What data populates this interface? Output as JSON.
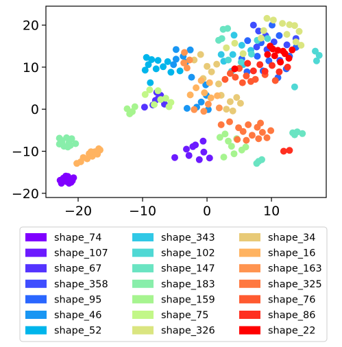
{
  "chart_data": {
    "type": "scatter",
    "xlim": [
      -25,
      18.5
    ],
    "ylim": [
      -21,
      24.5
    ],
    "xticks": [
      -20,
      -10,
      0,
      10
    ],
    "yticks": [
      -20,
      -10,
      0,
      10,
      20
    ],
    "xtick_labels": [
      "−20",
      "−10",
      "0",
      "10"
    ],
    "ytick_labels": [
      "−20",
      "−10",
      "0",
      "10",
      "20"
    ],
    "title": "",
    "xlabel": "",
    "ylabel": "",
    "grid": false,
    "legend_position": "below",
    "legend_columns": 3,
    "series": [
      {
        "name": "shape_74",
        "color": "#8000ff",
        "points": [
          [
            -22.3,
            -16.4
          ],
          [
            -21.8,
            -17.2
          ],
          [
            -21.2,
            -16.6
          ],
          [
            -22.6,
            -17.6
          ],
          [
            -21.6,
            -16.0
          ],
          [
            -20.9,
            -17.0
          ],
          [
            -22.0,
            -16.8
          ],
          [
            -21.4,
            -17.6
          ],
          [
            -22.8,
            -16.9
          ],
          [
            -20.7,
            -16.3
          ],
          [
            -21.9,
            -15.9
          ],
          [
            -21.1,
            -17.4
          ]
        ]
      },
      {
        "name": "shape_107",
        "color": "#6c1aff",
        "points": [
          [
            -5.0,
            -11.5
          ],
          [
            -3.2,
            -9.5
          ],
          [
            -2.8,
            -11.0
          ],
          [
            -1.8,
            -8.5
          ],
          [
            -1.2,
            -12.0
          ],
          [
            -0.5,
            -10.2
          ],
          [
            0.4,
            -11.6
          ],
          [
            -0.6,
            -7.6
          ],
          [
            -2.2,
            -8.9
          ]
        ]
      },
      {
        "name": "shape_67",
        "color": "#5433ff",
        "points": [
          [
            -7.6,
            2.5
          ],
          [
            -7.8,
            4.0
          ],
          [
            -8.4,
            1.0
          ],
          [
            -7.2,
            3.3
          ],
          [
            -9.7,
            0.5
          ],
          [
            -6.6,
            1.2
          ],
          [
            -8.0,
            2.1
          ]
        ]
      },
      {
        "name": "shape_358",
        "color": "#3f4dff",
        "points": [
          [
            7.2,
            20.0
          ],
          [
            8.0,
            18.6
          ],
          [
            9.1,
            17.5
          ],
          [
            10.4,
            16.0
          ],
          [
            9.3,
            14.2
          ],
          [
            11.3,
            11.6
          ],
          [
            7.7,
            14.8
          ],
          [
            12.4,
            15.3
          ],
          [
            13.8,
            16.8
          ]
        ]
      },
      {
        "name": "shape_95",
        "color": "#2a66ff",
        "points": [
          [
            10.1,
            20.0
          ],
          [
            8.4,
            15.8
          ],
          [
            11.2,
            17.5
          ],
          [
            6.3,
            16.3
          ],
          [
            7.8,
            12.6
          ],
          [
            9.6,
            11.5
          ],
          [
            12.8,
            12.6
          ],
          [
            13.8,
            14.7
          ],
          [
            12.3,
            9.6
          ],
          [
            8.7,
            9.1
          ],
          [
            11.0,
            7.5
          ],
          [
            6.2,
            8.9
          ],
          [
            5.4,
            12.0
          ]
        ]
      },
      {
        "name": "shape_46",
        "color": "#1996f3",
        "points": [
          [
            -4.8,
            14.2
          ],
          [
            -3.7,
            12.6
          ],
          [
            -5.2,
            10.6
          ],
          [
            -2.6,
            14.1
          ],
          [
            -3.3,
            11.2
          ],
          [
            -2.4,
            7.6
          ],
          [
            -0.1,
            3.3
          ],
          [
            -1.6,
            0.5
          ],
          [
            0.2,
            -0.1
          ],
          [
            -0.9,
            1.7
          ],
          [
            -3.1,
            0.2
          ],
          [
            -0.2,
            5.8
          ],
          [
            -4.8,
            11.9
          ]
        ]
      },
      {
        "name": "shape_52",
        "color": "#00b5eb",
        "points": [
          [
            -9.4,
            12.3
          ],
          [
            -8.6,
            11.8
          ],
          [
            -9.1,
            10.6
          ],
          [
            -7.6,
            11.6
          ],
          [
            -8.8,
            6.3
          ],
          [
            -6.8,
            10.1
          ],
          [
            -7.9,
            9.6
          ],
          [
            -9.6,
            9.3
          ],
          [
            -5.6,
            8.8
          ],
          [
            -4.2,
            9.1
          ],
          [
            -6.1,
            11.3
          ]
        ]
      },
      {
        "name": "shape_343",
        "color": "#31c8e6",
        "points": [
          [
            5.4,
            15.2
          ],
          [
            4.0,
            13.0
          ],
          [
            5.6,
            10.6
          ],
          [
            3.8,
            9.0
          ],
          [
            6.8,
            14.0
          ],
          [
            2.2,
            13.0
          ],
          [
            2.6,
            11.4
          ],
          [
            4.2,
            17.6
          ]
        ]
      },
      {
        "name": "shape_102",
        "color": "#4fd8d4",
        "points": [
          [
            7.8,
            16.4
          ],
          [
            9.4,
            16.8
          ],
          [
            6.9,
            13.1
          ],
          [
            5.3,
            11.2
          ],
          [
            3.3,
            11.7
          ],
          [
            16.8,
            13.8
          ],
          [
            17.0,
            11.5
          ],
          [
            17.4,
            12.8
          ],
          [
            13.6,
            5.3
          ]
        ]
      },
      {
        "name": "shape_147",
        "color": "#6ae4c2",
        "points": [
          [
            2.3,
            16.8
          ],
          [
            1.8,
            16.4
          ],
          [
            2.5,
            19.0
          ],
          [
            3.2,
            19.2
          ],
          [
            8.0,
            -12.4
          ],
          [
            8.5,
            -12.0
          ],
          [
            7.7,
            -12.9
          ],
          [
            13.3,
            -5.6
          ],
          [
            14.0,
            -5.4
          ],
          [
            14.8,
            -5.8
          ],
          [
            13.6,
            -6.1
          ]
        ]
      },
      {
        "name": "shape_183",
        "color": "#88eeaa",
        "points": [
          [
            -22.7,
            -7.3
          ],
          [
            -21.8,
            -6.8
          ],
          [
            -22.9,
            -8.3
          ],
          [
            -21.4,
            -8.0
          ],
          [
            -22.2,
            -8.8
          ],
          [
            -21.0,
            -7.0
          ],
          [
            -22.5,
            -7.8
          ],
          [
            -21.6,
            -9.0
          ],
          [
            -20.4,
            -8.2
          ],
          [
            -22.9,
            -6.9
          ],
          [
            -21.2,
            -8.6
          ]
        ]
      },
      {
        "name": "shape_159",
        "color": "#a6f48f",
        "points": [
          [
            -12.4,
            0.1
          ],
          [
            -11.6,
            -0.6
          ],
          [
            -12.0,
            -1.1
          ],
          [
            -11.2,
            0.6
          ],
          [
            2.0,
            -6.7
          ],
          [
            3.3,
            -7.6
          ],
          [
            4.6,
            -7.0
          ],
          [
            3.8,
            -8.8
          ],
          [
            5.4,
            -9.7
          ],
          [
            4.2,
            -10.6
          ],
          [
            2.6,
            -11.4
          ],
          [
            6.0,
            -9.0
          ],
          [
            2.8,
            -5.9
          ]
        ]
      },
      {
        "name": "shape_75",
        "color": "#c2f788",
        "points": [
          [
            -8.9,
            4.6
          ],
          [
            -7.6,
            4.4
          ],
          [
            -7.2,
            2.3
          ],
          [
            -5.6,
            1.6
          ],
          [
            -5.9,
            0.6
          ],
          [
            -8.2,
            1.1
          ],
          [
            -6.4,
            2.6
          ],
          [
            -9.6,
            3.5
          ]
        ]
      },
      {
        "name": "shape_326",
        "color": "#dae580",
        "points": [
          [
            9.3,
            21.6
          ],
          [
            10.3,
            21.2
          ],
          [
            11.7,
            20.4
          ],
          [
            12.8,
            20.1
          ],
          [
            13.6,
            19.9
          ],
          [
            14.3,
            18.5
          ],
          [
            12.4,
            17.8
          ],
          [
            13.8,
            16.0
          ],
          [
            8.8,
            18.7
          ],
          [
            8.4,
            16.9
          ],
          [
            4.3,
            15.7
          ],
          [
            3.0,
            14.6
          ],
          [
            5.6,
            13.2
          ],
          [
            14.6,
            15.2
          ]
        ]
      },
      {
        "name": "shape_34",
        "color": "#e8ca77",
        "points": [
          [
            -2.0,
            11.7
          ],
          [
            -1.0,
            13.0
          ],
          [
            0.0,
            10.2
          ],
          [
            1.5,
            10.7
          ],
          [
            -0.6,
            7.3
          ],
          [
            1.8,
            6.0
          ],
          [
            3.6,
            1.8
          ],
          [
            4.0,
            -0.4
          ],
          [
            5.2,
            1.4
          ],
          [
            4.6,
            2.8
          ],
          [
            3.0,
            0.0
          ],
          [
            0.7,
            8.9
          ],
          [
            2.2,
            3.3
          ]
        ]
      },
      {
        "name": "shape_16",
        "color": "#ffb360",
        "points": [
          [
            -19.2,
            -11.5
          ],
          [
            -18.3,
            -10.6
          ],
          [
            -17.4,
            -10.1
          ],
          [
            -16.6,
            -9.7
          ],
          [
            -18.6,
            -11.8
          ],
          [
            -17.8,
            -11.2
          ],
          [
            -17.0,
            -10.7
          ],
          [
            -19.6,
            -12.5
          ],
          [
            -20.2,
            -12.9
          ],
          [
            -16.8,
            -9.4
          ],
          [
            -18.0,
            -10.1
          ],
          [
            -2.6,
            3.4
          ],
          [
            -1.7,
            5.1
          ],
          [
            -0.4,
            3.9
          ],
          [
            0.6,
            2.7
          ],
          [
            1.6,
            3.2
          ],
          [
            0.4,
            6.3
          ],
          [
            -0.9,
            6.8
          ]
        ]
      },
      {
        "name": "shape_163",
        "color": "#ff9450",
        "points": [
          [
            -3.5,
            13.5
          ],
          [
            -2.7,
            11.7
          ],
          [
            -3.1,
            9.8
          ],
          [
            -3.6,
            11.0
          ],
          [
            1.9,
            0.3
          ],
          [
            -0.5,
            -0.5
          ],
          [
            0.2,
            1.2
          ],
          [
            -2.0,
            -0.1
          ]
        ]
      },
      {
        "name": "shape_325",
        "color": "#ff7840",
        "points": [
          [
            2.2,
            -3.7
          ],
          [
            3.5,
            -3.0
          ],
          [
            4.9,
            -4.4
          ],
          [
            6.4,
            -3.7
          ],
          [
            7.8,
            -4.3
          ],
          [
            8.6,
            -5.5
          ],
          [
            9.3,
            -6.8
          ],
          [
            7.0,
            -6.2
          ],
          [
            5.6,
            -5.3
          ],
          [
            6.1,
            -7.4
          ],
          [
            4.7,
            -7.2
          ],
          [
            8.3,
            -3.3
          ],
          [
            9.9,
            -5.1
          ],
          [
            8.0,
            -7.0
          ]
        ]
      },
      {
        "name": "shape_76",
        "color": "#ff5a30",
        "points": [
          [
            3.6,
            8.5
          ],
          [
            2.8,
            7.1
          ],
          [
            4.4,
            7.6
          ],
          [
            5.0,
            9.7
          ],
          [
            6.1,
            7.9
          ],
          [
            6.8,
            6.6
          ],
          [
            9.0,
            8.2
          ],
          [
            10.6,
            6.8
          ],
          [
            5.5,
            6.3
          ],
          [
            7.5,
            7.1
          ]
        ]
      },
      {
        "name": "shape_86",
        "color": "#ff2f20",
        "points": [
          [
            8.2,
            10.6
          ],
          [
            9.0,
            9.0
          ],
          [
            10.1,
            10.4
          ],
          [
            7.2,
            9.1
          ],
          [
            11.2,
            8.9
          ],
          [
            12.5,
            10.0
          ],
          [
            6.3,
            10.9
          ],
          [
            11.9,
            -10.0
          ],
          [
            12.8,
            -9.8
          ]
        ]
      },
      {
        "name": "shape_22",
        "color": "#ff0000",
        "points": [
          [
            9.8,
            15.0
          ],
          [
            11.0,
            14.0
          ],
          [
            12.1,
            13.2
          ],
          [
            10.5,
            12.7
          ],
          [
            11.4,
            11.2
          ],
          [
            12.7,
            12.1
          ],
          [
            9.4,
            13.0
          ],
          [
            13.2,
            14.1
          ],
          [
            10.2,
            14.3
          ],
          [
            11.8,
            13.8
          ],
          [
            4.3,
            9.6
          ]
        ]
      }
    ]
  }
}
